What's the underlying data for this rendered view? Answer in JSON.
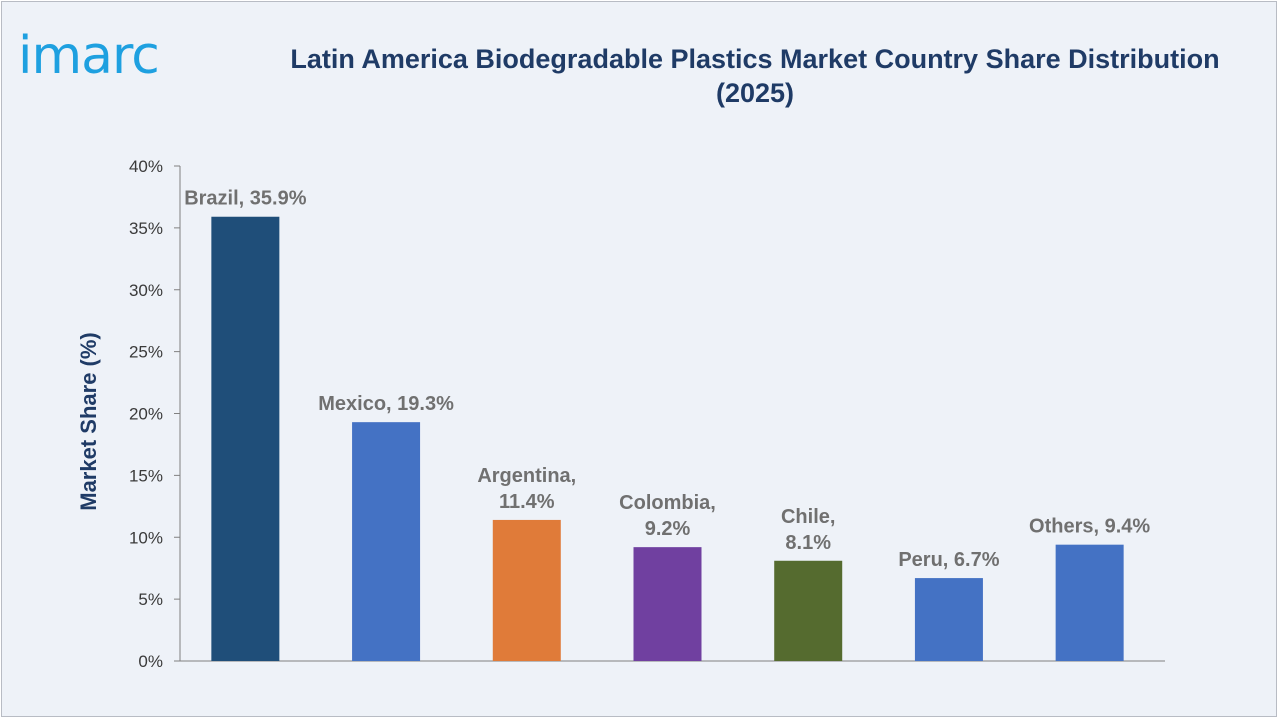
{
  "brand": {
    "logo_text": "imarc"
  },
  "chart_data": {
    "type": "bar",
    "title": "Latin America Biodegradable Plastics Market Country Share Distribution (2025)",
    "xlabel": "",
    "ylabel": "Market Share (%)",
    "ylim": [
      0,
      40
    ],
    "y_ticks": [
      "0%",
      "5%",
      "10%",
      "15%",
      "20%",
      "25%",
      "30%",
      "35%",
      "40%"
    ],
    "categories": [
      "Brazil",
      "Mexico",
      "Argentina",
      "Colombia",
      "Chile",
      "Peru",
      "Others"
    ],
    "values": [
      35.9,
      19.3,
      11.4,
      9.2,
      8.1,
      6.7,
      9.4
    ],
    "data_labels": [
      [
        "Brazil, 35.9%"
      ],
      [
        "Mexico, 19.3%"
      ],
      [
        "Argentina,",
        "11.4%"
      ],
      [
        "Colombia,",
        "9.2%"
      ],
      [
        "Chile,",
        "8.1%"
      ],
      [
        "Peru, 6.7%"
      ],
      [
        "Others, 9.4%"
      ]
    ],
    "colors": [
      "#1f4e79",
      "#4472c4",
      "#e07b39",
      "#7040a0",
      "#556b2f",
      "#4472c4",
      "#4472c4"
    ],
    "grid": false,
    "legend": "none"
  }
}
